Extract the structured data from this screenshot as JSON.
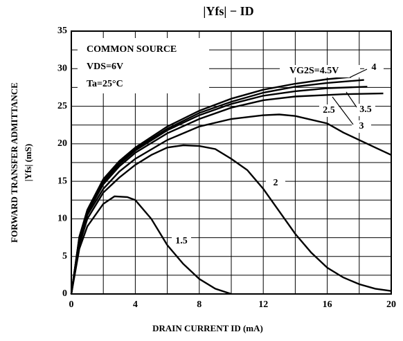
{
  "chart_data": {
    "type": "line",
    "title": "|Yfs| − ID",
    "ylabel": [
      "FORWARD TRANSFER ADMITTANCE",
      "|Yfs|  (mS)"
    ],
    "xlabel": "DRAIN CURRENT  ID  (mA)",
    "annotations": [
      "COMMON SOURCE",
      "VDS=6V",
      "Ta=25°C"
    ],
    "xlim": [
      0,
      20
    ],
    "ylim": [
      0,
      35
    ],
    "xticks": [
      0,
      4,
      8,
      12,
      16,
      20
    ],
    "yticks": [
      0,
      5,
      10,
      15,
      20,
      25,
      30,
      35
    ],
    "x_minor_ticks": [
      2,
      6,
      10,
      14,
      18
    ],
    "y_minor_ticks": [
      2.5,
      7.5,
      12.5,
      17.5,
      22.5,
      27.5,
      32.5
    ],
    "grid": true,
    "color": "#000000",
    "series": [
      {
        "name": "1.5",
        "x": [
          0,
          0.5,
          1,
          2,
          2.7,
          3.5,
          4,
          5,
          6,
          7,
          8,
          9,
          10
        ],
        "values": [
          0,
          6,
          9,
          12,
          13,
          12.9,
          12.5,
          10,
          6.5,
          4,
          2,
          0.7,
          0
        ]
      },
      {
        "name": "2",
        "x": [
          0,
          0.5,
          1,
          2,
          3,
          4,
          5,
          6,
          7,
          8,
          9,
          10,
          11,
          12,
          13,
          14,
          15,
          16,
          17,
          18,
          19,
          20
        ],
        "values": [
          0,
          6.5,
          10,
          13.5,
          15.5,
          17.2,
          18.5,
          19.5,
          19.8,
          19.7,
          19.3,
          18,
          16.5,
          14,
          11,
          8,
          5.5,
          3.5,
          2.2,
          1.3,
          0.7,
          0.4
        ]
      },
      {
        "name": "2.5",
        "x": [
          0,
          0.5,
          1,
          2,
          3,
          4,
          6,
          8,
          10,
          12,
          13,
          14,
          16,
          17,
          18,
          19,
          20
        ],
        "values": [
          0,
          7,
          10.5,
          14,
          16.3,
          18,
          20.5,
          22.3,
          23.3,
          23.8,
          23.9,
          23.7,
          22.7,
          21.5,
          20.5,
          19.5,
          18.5
        ]
      },
      {
        "name": "3",
        "x": [
          0,
          0.5,
          1,
          2,
          3,
          4,
          6,
          8,
          10,
          12,
          14,
          16,
          17,
          19.5
        ],
        "values": [
          0,
          7.3,
          10.8,
          14.6,
          17,
          18.8,
          21.4,
          23.3,
          24.8,
          25.8,
          26.3,
          26.5,
          26.6,
          26.7
        ]
      },
      {
        "name": "3.5",
        "x": [
          0,
          0.5,
          1,
          2,
          3,
          4,
          6,
          8,
          10,
          12,
          14,
          16,
          18.5
        ],
        "values": [
          0,
          7.4,
          11,
          14.9,
          17.3,
          19.1,
          21.8,
          23.8,
          25.3,
          26.4,
          27,
          27.4,
          27.6
        ]
      },
      {
        "name": "4",
        "x": [
          0,
          0.5,
          1,
          2,
          3,
          4,
          6,
          8,
          10,
          12,
          14,
          16,
          18.3
        ],
        "values": [
          0,
          7.5,
          11.1,
          15.1,
          17.5,
          19.3,
          22,
          24.1,
          25.6,
          26.8,
          27.6,
          28.1,
          28.5
        ]
      },
      {
        "name": "VG2S=4.5V",
        "x": [
          0,
          0.5,
          1,
          2,
          3,
          4,
          6,
          8,
          10,
          12,
          14,
          16,
          17.5
        ],
        "values": [
          0,
          7.6,
          11.2,
          15.3,
          17.7,
          19.5,
          22.3,
          24.4,
          26,
          27.2,
          28,
          28.6,
          28.9
        ]
      }
    ]
  }
}
